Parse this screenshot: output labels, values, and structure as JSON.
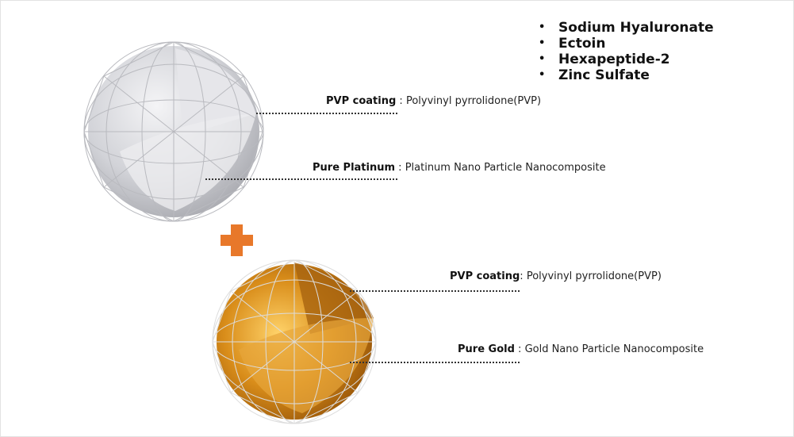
{
  "ingredients": [
    "Sodium Hyaluronate",
    "Ectoin",
    "Hexapeptide-2",
    "Zinc Sulfate"
  ],
  "platinum": {
    "coating_term": "PVP coating",
    "coating_sep": " : ",
    "coating_desc": "Polyvinyl pyrrolidone(PVP)",
    "core_term": "Pure Platinum",
    "core_sep": " : ",
    "core_desc": "Platinum Nano Particle Nanocomposite"
  },
  "gold": {
    "coating_term": "PVP coating",
    "coating_sep": ": ",
    "coating_desc": "Polyvinyl pyrrolidone(PVP)",
    "core_term": "Pure Gold",
    "core_sep": " : ",
    "core_desc": "Gold Nano Particle Nanocomposite"
  },
  "colors": {
    "plus": "#e8782a",
    "platinum": "#c9cacf",
    "gold": "#c97f12"
  }
}
